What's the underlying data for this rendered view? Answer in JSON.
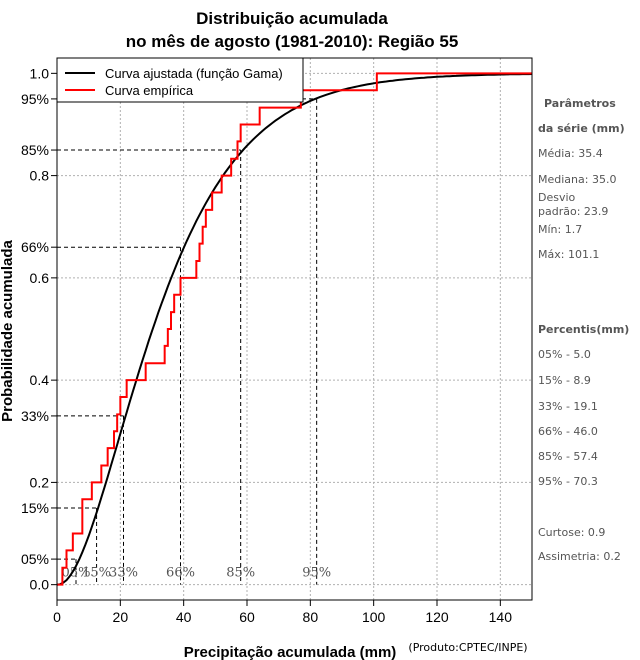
{
  "chart_data": {
    "type": "line",
    "title": [
      "Distribuição acumulada",
      "no mês de agosto (1981-2010): Região 55"
    ],
    "xlabel": "Precipitação acumulada (mm)",
    "ylabel": "Probabilidade acumulada",
    "credit": "(Produto:CPTEC/INPE)",
    "xlim": [
      0,
      150
    ],
    "ylim": [
      -0.03,
      1.03
    ],
    "x_ticks": [
      0,
      20,
      40,
      60,
      80,
      100,
      120,
      140
    ],
    "y_ticks": [
      {
        "value": 0.0,
        "label": "0.0"
      },
      {
        "value": 0.05,
        "label": "05%"
      },
      {
        "value": 0.15,
        "label": "15%"
      },
      {
        "value": 0.2,
        "label": "0.2"
      },
      {
        "value": 0.33,
        "label": "33%"
      },
      {
        "value": 0.4,
        "label": "0.4"
      },
      {
        "value": 0.6,
        "label": "0.6"
      },
      {
        "value": 0.66,
        "label": "66%"
      },
      {
        "value": 0.8,
        "label": "0.8"
      },
      {
        "value": 0.85,
        "label": "85%"
      },
      {
        "value": 0.95,
        "label": "95%"
      },
      {
        "value": 1.0,
        "label": "1.0"
      }
    ],
    "grid_y": [
      0.0,
      0.2,
      0.4,
      0.6,
      0.8,
      1.0
    ],
    "grid_x": [
      20,
      40,
      60,
      80,
      100,
      120,
      140
    ],
    "legend": {
      "position": "top-left",
      "items": [
        {
          "label": "Curva ajustada (função Gama)",
          "color": "#000000"
        },
        {
          "label": "Curva empírica",
          "color": "#ff0000"
        }
      ]
    },
    "series": [
      {
        "name": "Curva ajustada (função Gama)",
        "color": "#000000",
        "kind": "gamma",
        "shape": 2.2,
        "scale": 16.1
      },
      {
        "name": "Curva empírica",
        "color": "#ff0000",
        "kind": "step",
        "x": [
          0,
          1.7,
          3,
          4,
          5,
          7,
          8,
          9,
          11,
          12,
          13,
          14,
          15,
          16,
          17,
          18,
          19,
          20,
          21,
          22,
          26,
          28,
          29,
          30,
          34,
          35,
          36,
          37,
          39,
          42,
          44,
          45,
          46,
          47,
          49,
          50,
          52,
          53,
          55,
          57,
          58,
          61,
          64,
          77,
          101,
          150
        ],
        "y": [
          0,
          0.033,
          0.067,
          0.067,
          0.1,
          0.1,
          0.167,
          0.167,
          0.2,
          0.2,
          0.2,
          0.233,
          0.233,
          0.267,
          0.267,
          0.3,
          0.333,
          0.367,
          0.367,
          0.4,
          0.4,
          0.433,
          0.433,
          0.433,
          0.467,
          0.5,
          0.533,
          0.567,
          0.6,
          0.6,
          0.633,
          0.667,
          0.7,
          0.733,
          0.767,
          0.767,
          0.8,
          0.8,
          0.833,
          0.867,
          0.9,
          0.9,
          0.933,
          0.967,
          1.0,
          1.0
        ]
      }
    ],
    "percentile_lines": [
      {
        "label": "05%",
        "p": 0.05,
        "x": 6
      },
      {
        "label": "15%",
        "p": 0.15,
        "x": 12.5
      },
      {
        "label": "33%",
        "p": 0.33,
        "x": 21
      },
      {
        "label": "66%",
        "p": 0.66,
        "x": 39
      },
      {
        "label": "85%",
        "p": 0.85,
        "x": 58
      },
      {
        "label": "95%",
        "p": 0.95,
        "x": 82
      }
    ],
    "side_panel": {
      "params_title": [
        "Parâmetros",
        "da série (mm)"
      ],
      "params": [
        "Média: 35.4",
        "Mediana: 35.0",
        "Desvio",
        "padrão: 23.9",
        "Mín: 1.7",
        "Máx: 101.1"
      ],
      "percentis_title": "Percentis(mm)",
      "percentis": [
        "05% - 5.0",
        "15% - 8.9",
        "33% - 19.1",
        "66% - 46.0",
        "85% - 57.4",
        "95% - 70.3"
      ],
      "extra": [
        "Curtose: 0.9",
        "Assimetria: 0.2"
      ]
    }
  }
}
